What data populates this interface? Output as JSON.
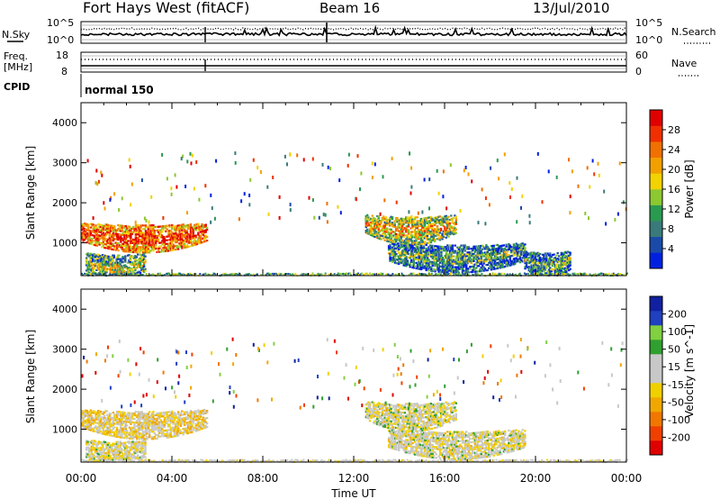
{
  "header": {
    "station": "Fort Hays West (fitACF)",
    "beam": "Beam 16",
    "date": "13/Jul/2010"
  },
  "noise_panel": {
    "left_label": "N.Sky",
    "right_label": "N.Search",
    "y_tick_top": "10^5",
    "y_tick_bottom": "10^0"
  },
  "freq_panel": {
    "left_label_line1": "Freq.",
    "left_label_line2": "[MHz]",
    "left_ticks": [
      "18",
      "8"
    ],
    "right_label": "Nave",
    "right_ticks": [
      "60",
      "0"
    ]
  },
  "cpid": {
    "label": "CPID",
    "value": "normal 150"
  },
  "colors": {
    "power_scale": [
      "#0020e0",
      "#1a4aa8",
      "#3a7a7a",
      "#2a9a50",
      "#8cc830",
      "#f2d200",
      "#f2a000",
      "#f07000",
      "#f03000",
      "#e00000"
    ],
    "velocity_scale": [
      "#e00000",
      "#f04000",
      "#f07800",
      "#f0a800",
      "#f0d000",
      "#c8c8c8",
      "#c8c8c8",
      "#30a030",
      "#80d040",
      "#2040c0",
      "#1020a0"
    ]
  },
  "chart_data": [
    {
      "type": "heatmap",
      "name": "power",
      "ylabel": "Slant Range [km]",
      "ylim": [
        180,
        4500
      ],
      "yticks": [
        "1000",
        "2000",
        "3000",
        "4000"
      ],
      "xlim": [
        0,
        24
      ],
      "colorbar_label": "Power [dB]",
      "colorbar_ticks": [
        "4",
        "8",
        "12",
        "16",
        "20",
        "24",
        "28"
      ],
      "colorbar_range": [
        0,
        32
      ],
      "echo_regions": [
        {
          "t_start": 0.0,
          "t_end": 5.5,
          "range_center": 1300,
          "value": 22
        },
        {
          "t_start": 0.2,
          "t_end": 2.8,
          "range_center": 550,
          "value": 10
        },
        {
          "t_start": 12.5,
          "t_end": 16.5,
          "range_center": 1500,
          "value": 14
        },
        {
          "t_start": 13.5,
          "t_end": 19.5,
          "range_center": 800,
          "value": 6
        },
        {
          "t_start": 19.5,
          "t_end": 21.5,
          "range_center": 600,
          "value": 6
        }
      ]
    },
    {
      "type": "heatmap",
      "name": "velocity",
      "ylabel": "Slant Range [km]",
      "ylim": [
        180,
        4500
      ],
      "yticks": [
        "1000",
        "2000",
        "3000",
        "4000"
      ],
      "xlabel": "Time UT",
      "xlim": [
        0,
        24
      ],
      "xticks": [
        "00:00",
        "04:00",
        "08:00",
        "12:00",
        "16:00",
        "20:00",
        "00:00"
      ],
      "colorbar_label": "Velocity [m s^-1]",
      "colorbar_ticks": [
        "200",
        "100",
        "50",
        "15",
        "-15",
        "-50",
        "-100",
        "-200"
      ],
      "colorbar_range": [
        -250,
        250
      ],
      "echo_regions": [
        {
          "t_start": 0.0,
          "t_end": 5.5,
          "range_center": 1300,
          "value": -30
        },
        {
          "t_start": 0.2,
          "t_end": 2.8,
          "range_center": 550,
          "value": 0
        },
        {
          "t_start": 12.5,
          "t_end": 16.5,
          "range_center": 1500,
          "value": 5
        },
        {
          "t_start": 13.5,
          "t_end": 19.5,
          "range_center": 800,
          "value": 0
        }
      ]
    }
  ]
}
